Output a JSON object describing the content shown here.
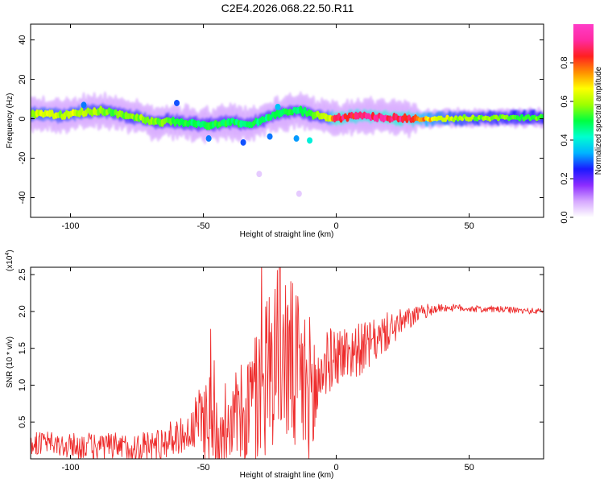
{
  "title": "C2E4.2026.068.22.50.R11",
  "chart_data": [
    {
      "type": "heatmap",
      "xlabel": "Height of straight line (km)",
      "ylabel": "Frequency (Hz)",
      "xlim": [
        -115,
        78
      ],
      "ylim": [
        -50,
        48
      ],
      "xticks": [
        -100,
        -50,
        0,
        50
      ],
      "yticks": [
        -40,
        -20,
        0,
        20,
        40
      ],
      "xtick_labels": [
        "-100",
        "-50",
        "0",
        "50"
      ],
      "ytick_labels": [
        "-40",
        "-20",
        "0",
        "20",
        "40"
      ],
      "colorbar": {
        "label": "Normalized spectral amplitude",
        "range": [
          0.0,
          1.0
        ],
        "ticks": [
          0.0,
          0.2,
          0.4,
          0.6,
          0.8
        ],
        "tick_labels": [
          "0.0",
          "0.2",
          "0.4",
          "0.6",
          "0.8"
        ],
        "colors": [
          "#ffffff",
          "#d6a8ff",
          "#8c2cff",
          "#1a1aff",
          "#00b4ff",
          "#00ffd0",
          "#00ff40",
          "#9dff00",
          "#ffff00",
          "#ff9000",
          "#ff2020",
          "#ff2aa0",
          "#ff3cc8"
        ]
      },
      "ridge": [
        {
          "x": -113,
          "f": 2.5,
          "a": 0.62
        },
        {
          "x": -108,
          "f": 2.2,
          "a": 0.66
        },
        {
          "x": -103,
          "f": 1.6,
          "a": 0.6
        },
        {
          "x": -98,
          "f": 2.8,
          "a": 0.64
        },
        {
          "x": -93,
          "f": 3.5,
          "a": 0.6
        },
        {
          "x": -88,
          "f": 4.0,
          "a": 0.58
        },
        {
          "x": -83,
          "f": 3.0,
          "a": 0.56
        },
        {
          "x": -78,
          "f": 1.5,
          "a": 0.56
        },
        {
          "x": -73,
          "f": 0.0,
          "a": 0.6
        },
        {
          "x": -68,
          "f": -2.0,
          "a": 0.56
        },
        {
          "x": -63,
          "f": -1.0,
          "a": 0.55
        },
        {
          "x": -58,
          "f": -2.2,
          "a": 0.52
        },
        {
          "x": -53,
          "f": -2.5,
          "a": 0.5
        },
        {
          "x": -48,
          "f": -3.0,
          "a": 0.5
        },
        {
          "x": -43,
          "f": -2.0,
          "a": 0.52
        },
        {
          "x": -38,
          "f": -1.5,
          "a": 0.5
        },
        {
          "x": -33,
          "f": -3.0,
          "a": 0.5
        },
        {
          "x": -28,
          "f": -1.0,
          "a": 0.48
        },
        {
          "x": -23,
          "f": 2.0,
          "a": 0.52
        },
        {
          "x": -18,
          "f": 3.5,
          "a": 0.5
        },
        {
          "x": -13,
          "f": 4.0,
          "a": 0.5
        },
        {
          "x": -8,
          "f": 2.0,
          "a": 0.56
        },
        {
          "x": -3,
          "f": 0.5,
          "a": 0.62
        },
        {
          "x": 0,
          "f": 0.0,
          "a": 0.95
        },
        {
          "x": 5,
          "f": 1.0,
          "a": 0.85
        },
        {
          "x": 10,
          "f": 1.5,
          "a": 0.88
        },
        {
          "x": 15,
          "f": 1.0,
          "a": 0.9
        },
        {
          "x": 20,
          "f": 0.5,
          "a": 0.92
        },
        {
          "x": 28,
          "f": 0.0,
          "a": 0.88
        },
        {
          "x": 35,
          "f": 0.2,
          "a": 0.72
        },
        {
          "x": 45,
          "f": 0.3,
          "a": 0.62
        },
        {
          "x": 55,
          "f": 0.5,
          "a": 0.58
        },
        {
          "x": 65,
          "f": 0.5,
          "a": 0.56
        },
        {
          "x": 78,
          "f": 0.5,
          "a": 0.55
        }
      ],
      "scatter_blobs": [
        {
          "x": -48,
          "f": -10,
          "a": 0.3
        },
        {
          "x": -35,
          "f": -12,
          "a": 0.28
        },
        {
          "x": -25,
          "f": -9,
          "a": 0.3
        },
        {
          "x": -15,
          "f": -10,
          "a": 0.32
        },
        {
          "x": -10,
          "f": -11,
          "a": 0.4
        },
        {
          "x": -29,
          "f": -28,
          "a": 0.05
        },
        {
          "x": -14,
          "f": -38,
          "a": 0.05
        },
        {
          "x": -22,
          "f": 6,
          "a": 0.35
        },
        {
          "x": -95,
          "f": 7,
          "a": 0.3
        },
        {
          "x": -60,
          "f": 8,
          "a": 0.28
        }
      ]
    },
    {
      "type": "line",
      "xlabel": "Height of straight line (km)",
      "ylabel": "SNR (10 * v/v)",
      "y_multiplier": "(x10",
      "y_multiplier_exp": "4",
      "xlim": [
        -115,
        78
      ],
      "ylim": [
        0,
        26000
      ],
      "xticks": [
        -100,
        -50,
        0,
        50
      ],
      "yticks": [
        5000,
        10000,
        15000,
        20000,
        25000
      ],
      "xtick_labels": [
        "-100",
        "-50",
        "0",
        "50"
      ],
      "ytick_labels": [
        "0.5",
        "1.0",
        "1.5",
        "2.0",
        "2.5"
      ],
      "color": "#ee2c2c",
      "series": [
        {
          "name": "SNR",
          "x": [
            -115,
            -110,
            -105,
            -100,
            -95,
            -90,
            -85,
            -80,
            -75,
            -70,
            -65,
            -60,
            -55,
            -50,
            -47,
            -45,
            -40,
            -35,
            -30,
            -27,
            -24,
            -22,
            -20,
            -18,
            -15,
            -12,
            -10,
            -8,
            -5,
            -2,
            0,
            5,
            10,
            13,
            15,
            20,
            25,
            30,
            35,
            40,
            45,
            50,
            55,
            60,
            65,
            70,
            78
          ],
          "y": [
            2000,
            2200,
            1800,
            1700,
            1800,
            1500,
            1600,
            1400,
            1500,
            1800,
            2300,
            3000,
            3500,
            6000,
            5000,
            4000,
            4500,
            6000,
            8000,
            11000,
            14000,
            16000,
            15000,
            13000,
            11000,
            10000,
            9000,
            8500,
            12500,
            13500,
            14000,
            14500,
            15000,
            15500,
            16000,
            17500,
            18500,
            19500,
            20200,
            20500,
            20500,
            20400,
            20300,
            20300,
            20200,
            20100,
            20000
          ]
        }
      ],
      "noise_amplitude": [
        {
          "x": -115,
          "amp": 1500
        },
        {
          "x": -55,
          "amp": 2500
        },
        {
          "x": -48,
          "amp": 7000
        },
        {
          "x": -40,
          "amp": 4000
        },
        {
          "x": -33,
          "amp": 9000
        },
        {
          "x": -25,
          "amp": 12000
        },
        {
          "x": -20,
          "amp": 13000
        },
        {
          "x": -15,
          "amp": 12000
        },
        {
          "x": -8,
          "amp": 10000
        },
        {
          "x": -5,
          "amp": 4500
        },
        {
          "x": 10,
          "amp": 3500
        },
        {
          "x": 20,
          "amp": 2500
        },
        {
          "x": 30,
          "amp": 1200
        },
        {
          "x": 40,
          "amp": 500
        },
        {
          "x": 78,
          "amp": 400
        }
      ]
    }
  ]
}
